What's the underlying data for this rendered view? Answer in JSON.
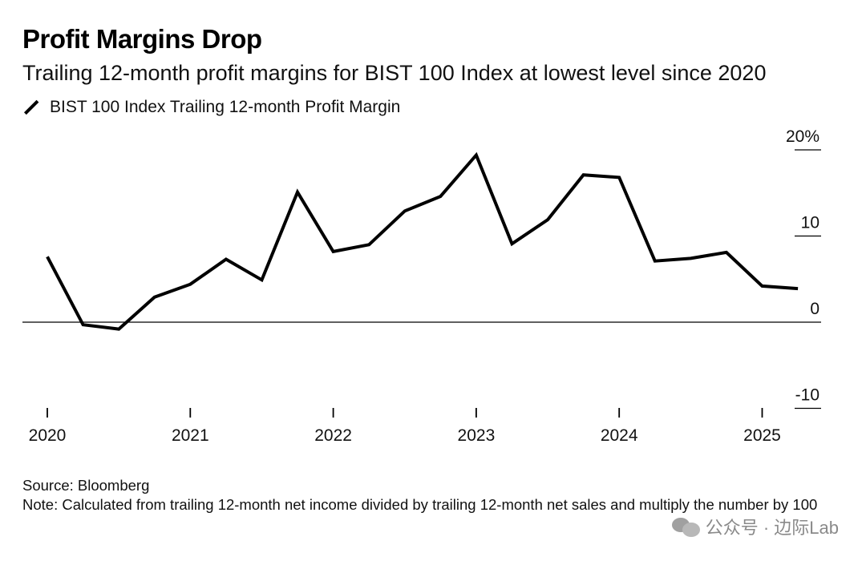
{
  "header": {
    "title": "Profit Margins Drop",
    "subtitle": "Trailing 12-month profit margins for BIST 100 Index at lowest level since 2020"
  },
  "legend": {
    "label": "BIST 100 Index Trailing 12-month Profit Margin"
  },
  "footer": {
    "source": "Source: Bloomberg",
    "note": "Note: Calculated from trailing 12-month net income divided by trailing 12-month net sales and multiply the number by 100"
  },
  "watermark": {
    "text": "公众号 · 边际Lab"
  },
  "chart_data": {
    "type": "line",
    "title": "Profit Margins Drop",
    "subtitle": "Trailing 12-month profit margins for BIST 100 Index at lowest level since 2020",
    "xlabel": "",
    "ylabel": "",
    "ylim": [
      -10,
      20
    ],
    "y_ticks": [
      {
        "value": 20,
        "label": "20%"
      },
      {
        "value": 10,
        "label": "10"
      },
      {
        "value": 0,
        "label": "0"
      },
      {
        "value": -10,
        "label": "-10"
      }
    ],
    "x_ticks": [
      "2020",
      "2021",
      "2022",
      "2023",
      "2024",
      "2025"
    ],
    "grid": false,
    "legend_position": "top-left",
    "line_color": "#000000",
    "series": [
      {
        "name": "BIST 100 Index Trailing 12-month Profit Margin",
        "x": [
          2020.0,
          2020.25,
          2020.5,
          2020.75,
          2021.0,
          2021.25,
          2021.5,
          2021.75,
          2022.0,
          2022.25,
          2022.5,
          2022.75,
          2023.0,
          2023.25,
          2023.5,
          2023.75,
          2024.0,
          2024.25,
          2024.5,
          2024.75,
          2025.0,
          2025.25
        ],
        "values": [
          7.6,
          -0.3,
          -0.8,
          2.9,
          4.4,
          7.3,
          4.9,
          15.1,
          8.2,
          9.0,
          12.9,
          14.6,
          19.4,
          9.1,
          11.9,
          17.1,
          16.8,
          7.1,
          7.4,
          8.1,
          4.2,
          3.9
        ]
      }
    ]
  }
}
